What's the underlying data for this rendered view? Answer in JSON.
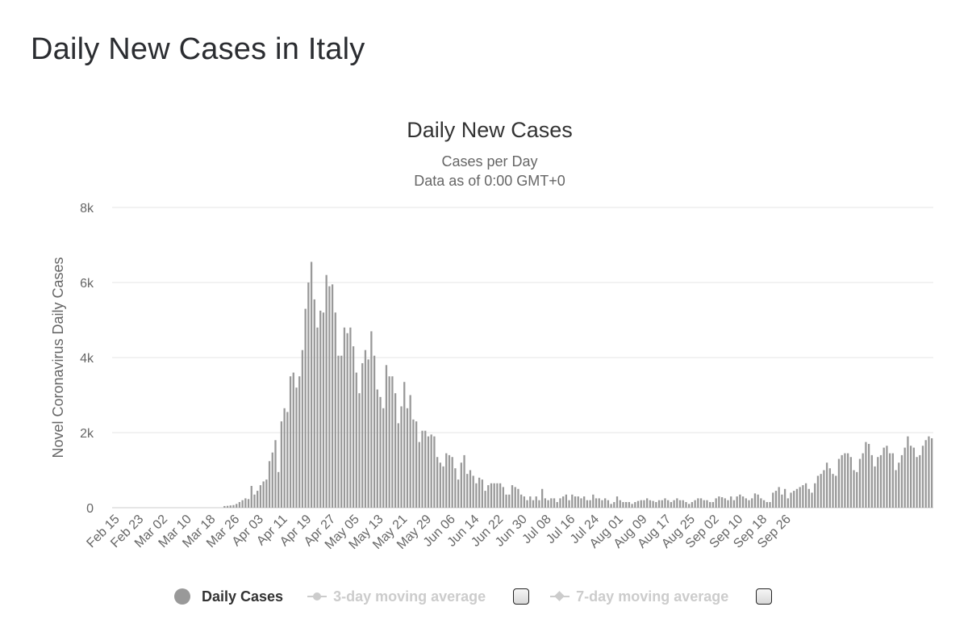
{
  "page": {
    "title": "Daily New Cases in Italy"
  },
  "chart_data": {
    "type": "bar",
    "title": "Daily New Cases",
    "subtitle": "Cases per Day",
    "subtitle2": "Data as of 0:00 GMT+0",
    "ylabel": "Novel Coronavirus Daily Cases",
    "xlabel": "",
    "ylim": [
      0,
      8000
    ],
    "y_ticks": [
      "0",
      "2k",
      "4k",
      "6k",
      "8k"
    ],
    "y_tick_values": [
      0,
      2000,
      4000,
      6000,
      8000
    ],
    "x_tick_labels": [
      "Feb 15",
      "Feb 23",
      "Mar 02",
      "Mar 10",
      "Mar 18",
      "Mar 26",
      "Apr 03",
      "Apr 11",
      "Apr 19",
      "Apr 27",
      "May 05",
      "May 13",
      "May 21",
      "May 29",
      "Jun 06",
      "Jun 14",
      "Jun 22",
      "Jun 30",
      "Jul 08",
      "Jul 16",
      "Jul 24",
      "Aug 01",
      "Aug 09",
      "Aug 17",
      "Aug 25",
      "Sep 02",
      "Sep 10",
      "Sep 18",
      "Sep 26"
    ],
    "grid": true,
    "legend_position": "bottom",
    "bar_color": "#999999",
    "series": [
      {
        "name": "Daily Cases",
        "values": [
          0,
          0,
          0,
          0,
          0,
          0,
          0,
          0,
          0,
          0,
          0,
          0,
          0,
          0,
          0,
          0,
          0,
          0,
          0,
          0,
          0,
          0,
          0,
          0,
          0,
          0,
          0,
          0,
          0,
          0,
          0,
          0,
          0,
          0,
          0,
          0,
          0,
          45,
          50,
          60,
          70,
          100,
          150,
          200,
          250,
          230,
          580,
          350,
          450,
          600,
          700,
          750,
          1240,
          1470,
          1800,
          950,
          2300,
          2650,
          2550,
          3500,
          3600,
          3200,
          3500,
          4200,
          5300,
          6000,
          6550,
          5550,
          4800,
          5250,
          5200,
          6200,
          5900,
          5950,
          5200,
          4050,
          4050,
          4800,
          4650,
          4800,
          4300,
          3600,
          3050,
          3850,
          4200,
          3950,
          4700,
          4050,
          3150,
          2950,
          2650,
          3800,
          3500,
          3500,
          3050,
          2250,
          2700,
          3350,
          2650,
          3000,
          2350,
          2300,
          1750,
          2050,
          2050,
          1900,
          1950,
          1900,
          1350,
          1200,
          1100,
          1450,
          1400,
          1350,
          1050,
          750,
          1200,
          1400,
          900,
          1000,
          850,
          650,
          800,
          750,
          450,
          600,
          650,
          650,
          650,
          650,
          550,
          350,
          350,
          600,
          550,
          500,
          350,
          300,
          200,
          300,
          200,
          300,
          200,
          500,
          250,
          200,
          250,
          250,
          150,
          250,
          300,
          350,
          200,
          350,
          300,
          300,
          250,
          300,
          200,
          200,
          350,
          250,
          250,
          200,
          250,
          200,
          100,
          150,
          300,
          200,
          150,
          150,
          150,
          100,
          150,
          180,
          200,
          200,
          250,
          200,
          180,
          150,
          200,
          200,
          250,
          200,
          150,
          200,
          250,
          200,
          200,
          150,
          100,
          150,
          200,
          250,
          250,
          200,
          200,
          150,
          150,
          250,
          300,
          280,
          250,
          200,
          300,
          200,
          300,
          350,
          300,
          250,
          200,
          250,
          380,
          350,
          250,
          200,
          150,
          150,
          400,
          450,
          550,
          350,
          500,
          250,
          400,
          450,
          500,
          550,
          600,
          650,
          500,
          400,
          650,
          850,
          900,
          1000,
          1200,
          1050,
          900,
          850,
          1300,
          1400,
          1450,
          1450,
          1350,
          1000,
          950,
          1300,
          1450,
          1750,
          1700,
          1400,
          1100,
          1350,
          1400,
          1600,
          1650,
          1450,
          1450,
          1000,
          1200,
          1400,
          1600,
          1900,
          1650,
          1600,
          1350,
          1400,
          1650,
          1800,
          1900,
          1850
        ]
      },
      {
        "name": "3-day moving average"
      },
      {
        "name": "7-day moving average"
      }
    ]
  },
  "legend": {
    "daily_cases": "Daily Cases",
    "ma3": "3-day moving average",
    "ma7": "7-day moving average"
  }
}
